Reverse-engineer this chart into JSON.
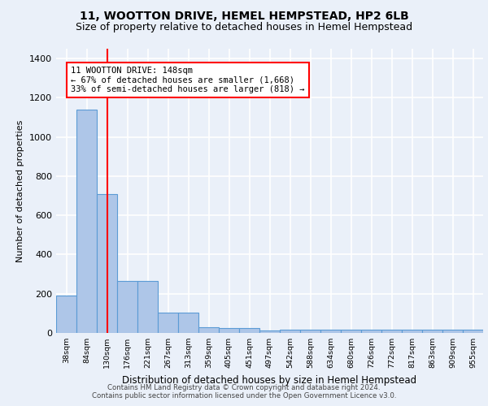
{
  "title1": "11, WOOTTON DRIVE, HEMEL HEMPSTEAD, HP2 6LB",
  "title2": "Size of property relative to detached houses in Hemel Hempstead",
  "xlabel": "Distribution of detached houses by size in Hemel Hempstead",
  "ylabel": "Number of detached properties",
  "categories": [
    "38sqm",
    "84sqm",
    "130sqm",
    "176sqm",
    "221sqm",
    "267sqm",
    "313sqm",
    "359sqm",
    "405sqm",
    "451sqm",
    "497sqm",
    "542sqm",
    "588sqm",
    "634sqm",
    "680sqm",
    "726sqm",
    "772sqm",
    "817sqm",
    "863sqm",
    "909sqm",
    "955sqm"
  ],
  "values": [
    190,
    1140,
    710,
    265,
    265,
    105,
    105,
    30,
    25,
    25,
    12,
    15,
    15,
    15,
    15,
    15,
    15,
    15,
    15,
    15,
    15
  ],
  "bar_color": "#aec6e8",
  "bar_edge_color": "#5b9bd5",
  "red_line_x": 2,
  "annotation_text": "11 WOOTTON DRIVE: 148sqm\n← 67% of detached houses are smaller (1,668)\n33% of semi-detached houses are larger (818) →",
  "footer1": "Contains HM Land Registry data © Crown copyright and database right 2024.",
  "footer2": "Contains public sector information licensed under the Open Government Licence v3.0.",
  "ylim": [
    0,
    1450
  ],
  "yticks": [
    0,
    200,
    400,
    600,
    800,
    1000,
    1200,
    1400
  ],
  "bg_color": "#eaf0f9",
  "grid_color": "#ffffff",
  "title1_fontsize": 10,
  "title2_fontsize": 9
}
